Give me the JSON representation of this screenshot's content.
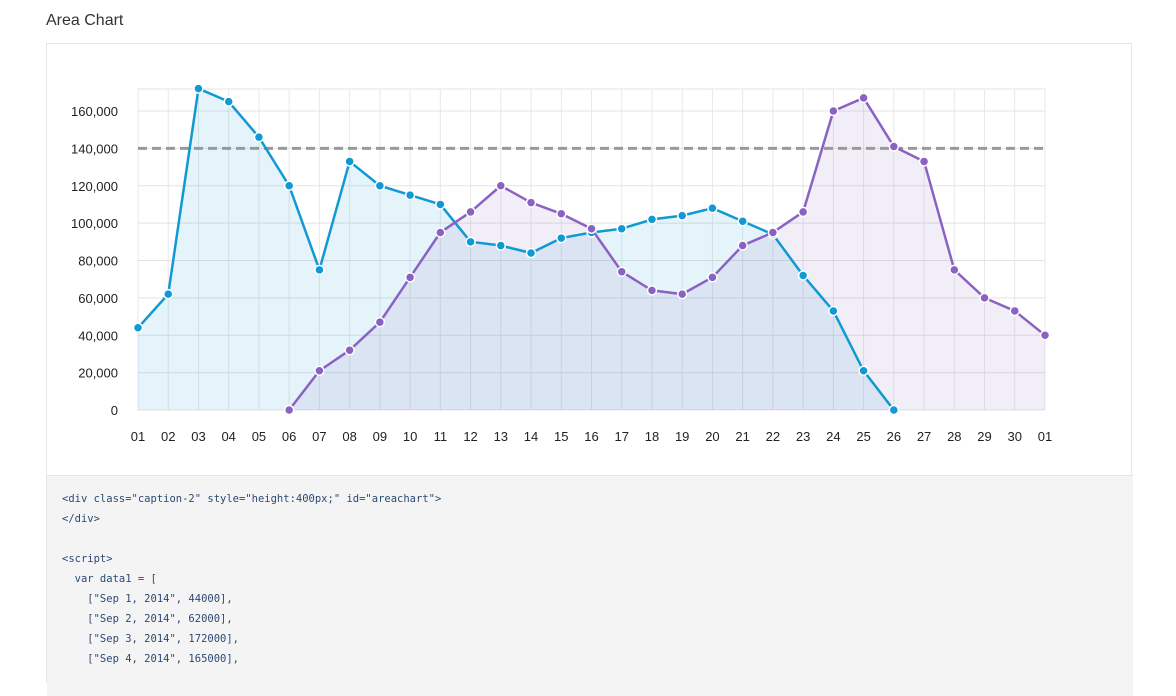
{
  "section": {
    "title": "Area Chart"
  },
  "chart_data": {
    "type": "area",
    "x": [
      "01",
      "02",
      "03",
      "04",
      "05",
      "06",
      "07",
      "08",
      "09",
      "10",
      "11",
      "12",
      "13",
      "14",
      "15",
      "16",
      "17",
      "18",
      "19",
      "20",
      "21",
      "22",
      "23",
      "24",
      "25",
      "26",
      "27",
      "28",
      "29",
      "30",
      "01"
    ],
    "series": [
      {
        "values": [
          44000,
          62000,
          172000,
          165000,
          146000,
          120000,
          75000,
          133000,
          120000,
          115000,
          110000,
          90000,
          88000,
          84000,
          92000,
          95000,
          97000,
          102000,
          104000,
          108000,
          101000,
          94000,
          72000,
          53000,
          21000,
          0,
          null,
          null,
          null,
          null,
          null
        ],
        "color": "#1199d3"
      },
      {
        "values": [
          null,
          null,
          null,
          null,
          null,
          0,
          21000,
          32000,
          47000,
          71000,
          95000,
          106000,
          120000,
          111000,
          105000,
          97000,
          74000,
          64000,
          62000,
          71000,
          88000,
          95000,
          106000,
          160000,
          167000,
          141000,
          133000,
          75000,
          60000,
          53000,
          40000
        ],
        "color": "#8a63c2"
      }
    ],
    "yticks": [
      "0",
      "20,000",
      "40,000",
      "60,000",
      "80,000",
      "100,000",
      "120,000",
      "140,000",
      "160,000"
    ],
    "ylim": [
      0,
      172000
    ],
    "reference_line": {
      "value": 140000,
      "style": "dashed",
      "color": "#999999"
    },
    "grid": true,
    "title": "",
    "xlabel": "",
    "ylabel": ""
  },
  "code": {
    "lines": [
      "<div class=\"caption-2\" style=\"height:400px;\" id=\"areachart\">",
      "</div>",
      "",
      "<script>",
      "  var data1 = [",
      "    [\"Sep 1, 2014\", 44000],",
      "    [\"Sep 2, 2014\", 62000],",
      "    [\"Sep 3, 2014\", 172000],",
      "    [\"Sep 4, 2014\", 165000],"
    ]
  }
}
